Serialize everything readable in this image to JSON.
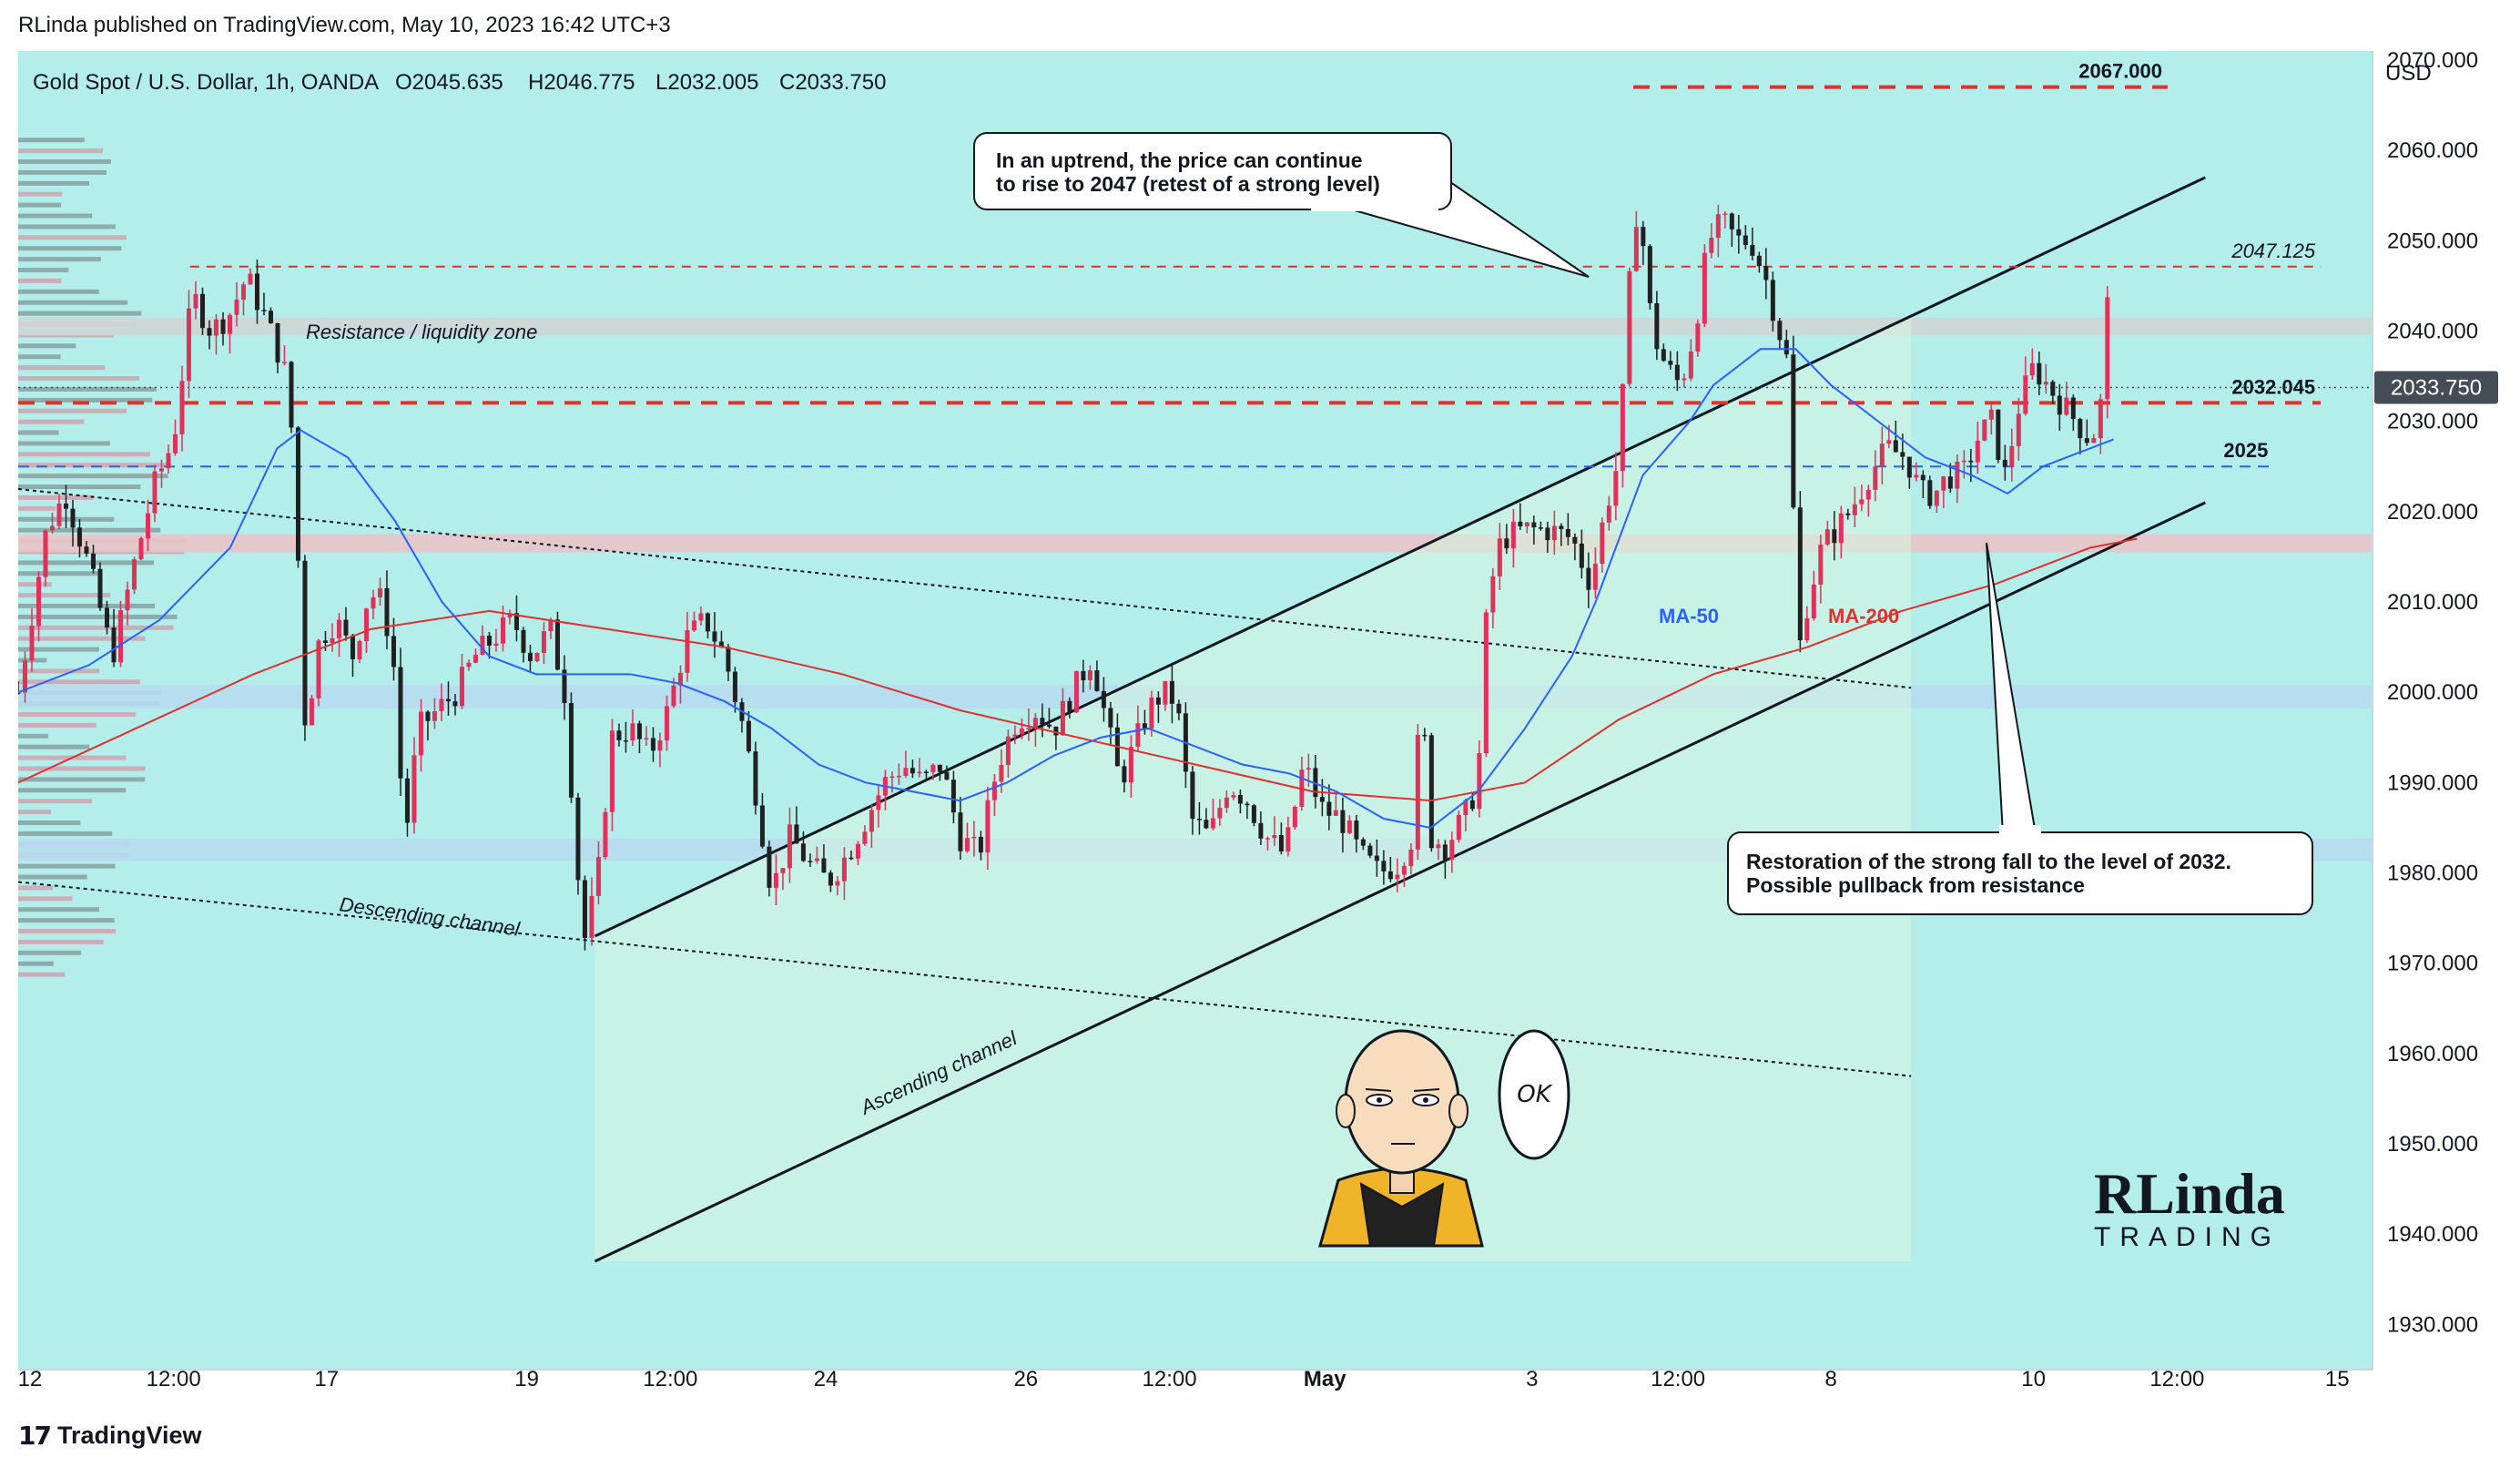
{
  "header": {
    "publisher_line": "RLinda published on TradingView.com, May 10, 2023 16:42 UTC+3"
  },
  "brand": {
    "footer_name": "TradingView",
    "watermark_top": "RLinda",
    "watermark_bottom": "TRADING"
  },
  "colors": {
    "up_candle": "#e0315a",
    "down_candle": "#202020",
    "ma50": "#2962ff",
    "ma200": "#e03030",
    "resistance_dash": "#e03030",
    "support_dash": "#2962ff",
    "background": "#b3eeea",
    "resistance_zone": "#d0d0d0",
    "support_zone": "#bde0f2"
  },
  "chart_data": {
    "type": "candlestick",
    "symbol_line": "Gold Spot / U.S. Dollar, 1h, OANDA",
    "ohlc": {
      "open": "O2045.635",
      "high": "H2046.775",
      "low": "L2032.005",
      "close": "C2033.750"
    },
    "currency": "USD",
    "ylim": [
      1925,
      2071
    ],
    "y_ticks": [
      {
        "label": "2070.000",
        "value": 2070
      },
      {
        "label": "2060.000",
        "value": 2060
      },
      {
        "label": "2050.000",
        "value": 2050
      },
      {
        "label": "2040.000",
        "value": 2040
      },
      {
        "label": "2030.000",
        "value": 2030
      },
      {
        "label": "2020.000",
        "value": 2020
      },
      {
        "label": "2010.000",
        "value": 2010
      },
      {
        "label": "2000.000",
        "value": 2000
      },
      {
        "label": "1990.000",
        "value": 1990
      },
      {
        "label": "1980.000",
        "value": 1980
      },
      {
        "label": "1970.000",
        "value": 1970
      },
      {
        "label": "1960.000",
        "value": 1960
      },
      {
        "label": "1950.000",
        "value": 1950
      },
      {
        "label": "1940.000",
        "value": 1940
      },
      {
        "label": "1930.000",
        "value": 1930
      }
    ],
    "x_ticks": [
      {
        "label": "12",
        "pos": 0.005,
        "bold": false
      },
      {
        "label": "12:00",
        "pos": 0.066,
        "bold": false
      },
      {
        "label": "17",
        "pos": 0.131,
        "bold": false
      },
      {
        "label": "19",
        "pos": 0.216,
        "bold": false
      },
      {
        "label": "12:00",
        "pos": 0.277,
        "bold": false
      },
      {
        "label": "24",
        "pos": 0.343,
        "bold": false
      },
      {
        "label": "26",
        "pos": 0.428,
        "bold": false
      },
      {
        "label": "12:00",
        "pos": 0.489,
        "bold": false
      },
      {
        "label": "May",
        "pos": 0.555,
        "bold": true
      },
      {
        "label": "3",
        "pos": 0.643,
        "bold": false
      },
      {
        "label": "12:00",
        "pos": 0.705,
        "bold": false
      },
      {
        "label": "8",
        "pos": 0.77,
        "bold": false
      },
      {
        "label": "10",
        "pos": 0.856,
        "bold": false
      },
      {
        "label": "12:00",
        "pos": 0.917,
        "bold": false
      },
      {
        "label": "15",
        "pos": 0.985,
        "bold": false
      }
    ],
    "last_price_label": "2033.750",
    "last_price": 2033.75,
    "levels": [
      {
        "label": "2067.000",
        "value": 2067,
        "style": "red-dash-thick",
        "x_from": 0.686,
        "x_to": 0.913
      },
      {
        "label": "2047.125",
        "value": 2047.125,
        "style": "red-dash-thin",
        "x_from": 0.073,
        "x_to": 0.978,
        "italic": true
      },
      {
        "label": "2032.045",
        "value": 2032.045,
        "style": "red-dash-thick",
        "x_from": 0.0,
        "x_to": 0.978
      },
      {
        "label": "2025",
        "value": 2025,
        "style": "blue-dash",
        "x_from": 0.0,
        "x_to": 0.958
      }
    ],
    "zones": [
      {
        "name": "resistance-zone",
        "y_top": 2041.5,
        "y_bottom": 2039.5
      },
      {
        "name": "pink-zone",
        "y_top": 2017.5,
        "y_bottom": 2015.5
      },
      {
        "name": "support-zone-2000",
        "y_top": 2000.8,
        "y_bottom": 1998.2
      },
      {
        "name": "support-zone-1983",
        "y_top": 1983.8,
        "y_bottom": 1981.3
      }
    ],
    "channels": {
      "descending_upper": [
        [
          0.0,
          2022.5
        ],
        [
          0.804,
          2000.5
        ]
      ],
      "descending_lower": [
        [
          0.0,
          1979
        ],
        [
          0.804,
          1957.5
        ]
      ],
      "ascending_lower": [
        [
          0.245,
          1937
        ],
        [
          0.929,
          2021
        ]
      ],
      "ascending_upper": [
        [
          0.245,
          1973
        ],
        [
          0.929,
          2057
        ]
      ]
    },
    "annotations": {
      "resistance_zone_label": "Resistance / liquidity zone",
      "descending_channel_label": "Descending channel",
      "ascending_channel_label": "Ascending channel",
      "ma50_label": "MA-50",
      "ma200_label": "MA-200",
      "callout_1_line1": "In an uptrend, the price can continue",
      "callout_1_line2": "to rise to 2047 (retest of a strong level)",
      "callout_2_line1": "Restoration of the strong fall to the level of 2032.",
      "callout_2_line2": "Possible pullback from resistance",
      "speech_bubble": "OK"
    },
    "price_path": [
      [
        0.0,
        2000
      ],
      [
        0.012,
        2018
      ],
      [
        0.02,
        2022
      ],
      [
        0.03,
        2014
      ],
      [
        0.04,
        2004
      ],
      [
        0.05,
        2015
      ],
      [
        0.058,
        2023
      ],
      [
        0.066,
        2028
      ],
      [
        0.074,
        2044
      ],
      [
        0.082,
        2040
      ],
      [
        0.09,
        2042
      ],
      [
        0.097,
        2046
      ],
      [
        0.104,
        2042
      ],
      [
        0.11,
        2038
      ],
      [
        0.115,
        2034
      ],
      [
        0.118,
        2020
      ],
      [
        0.122,
        1996
      ],
      [
        0.128,
        2006
      ],
      [
        0.135,
        2008
      ],
      [
        0.142,
        2004
      ],
      [
        0.149,
        2011
      ],
      [
        0.155,
        2010
      ],
      [
        0.16,
        2002
      ],
      [
        0.164,
        1983
      ],
      [
        0.17,
        1996
      ],
      [
        0.178,
        1998
      ],
      [
        0.186,
        2000
      ],
      [
        0.194,
        2004
      ],
      [
        0.202,
        2006
      ],
      [
        0.21,
        2008
      ],
      [
        0.218,
        2004
      ],
      [
        0.226,
        2007
      ],
      [
        0.232,
        2000
      ],
      [
        0.236,
        1986
      ],
      [
        0.24,
        1972
      ],
      [
        0.246,
        1979
      ],
      [
        0.252,
        1995
      ],
      [
        0.26,
        1996
      ],
      [
        0.268,
        1993
      ],
      [
        0.276,
        1998
      ],
      [
        0.284,
        2006
      ],
      [
        0.292,
        2008
      ],
      [
        0.3,
        2004
      ],
      [
        0.308,
        1996
      ],
      [
        0.314,
        1988
      ],
      [
        0.32,
        1978
      ],
      [
        0.328,
        1984
      ],
      [
        0.336,
        1981
      ],
      [
        0.344,
        1979
      ],
      [
        0.352,
        1982
      ],
      [
        0.36,
        1986
      ],
      [
        0.368,
        1990
      ],
      [
        0.376,
        1992
      ],
      [
        0.384,
        1990
      ],
      [
        0.392,
        1992
      ],
      [
        0.4,
        1984
      ],
      [
        0.408,
        1982
      ],
      [
        0.416,
        1992
      ],
      [
        0.424,
        1997
      ],
      [
        0.432,
        1998
      ],
      [
        0.44,
        1996
      ],
      [
        0.448,
        2000
      ],
      [
        0.456,
        2004
      ],
      [
        0.462,
        1997
      ],
      [
        0.468,
        1990
      ],
      [
        0.474,
        1994
      ],
      [
        0.48,
        1998
      ],
      [
        0.486,
        2000
      ],
      [
        0.492,
        1999
      ],
      [
        0.498,
        1986
      ],
      [
        0.506,
        1984
      ],
      [
        0.514,
        1990
      ],
      [
        0.522,
        1988
      ],
      [
        0.53,
        1984
      ],
      [
        0.538,
        1982
      ],
      [
        0.546,
        1992
      ],
      [
        0.554,
        1987
      ],
      [
        0.562,
        1986
      ],
      [
        0.57,
        1982
      ],
      [
        0.578,
        1980
      ],
      [
        0.586,
        1981
      ],
      [
        0.592,
        1984
      ],
      [
        0.596,
        2000
      ],
      [
        0.6,
        1984
      ],
      [
        0.606,
        1983
      ],
      [
        0.614,
        1986
      ],
      [
        0.62,
        1990
      ],
      [
        0.624,
        2010
      ],
      [
        0.63,
        2017
      ],
      [
        0.64,
        2018
      ],
      [
        0.65,
        2018
      ],
      [
        0.66,
        2017
      ],
      [
        0.668,
        2012
      ],
      [
        0.674,
        2020
      ],
      [
        0.68,
        2026
      ],
      [
        0.684,
        2044
      ],
      [
        0.688,
        2055
      ],
      [
        0.694,
        2040
      ],
      [
        0.7,
        2036
      ],
      [
        0.706,
        2034
      ],
      [
        0.712,
        2040
      ],
      [
        0.718,
        2050
      ],
      [
        0.724,
        2052
      ],
      [
        0.73,
        2050
      ],
      [
        0.736,
        2050
      ],
      [
        0.742,
        2046
      ],
      [
        0.748,
        2040
      ],
      [
        0.752,
        2036
      ],
      [
        0.756,
        2004
      ],
      [
        0.76,
        2010
      ],
      [
        0.766,
        2016
      ],
      [
        0.772,
        2018
      ],
      [
        0.778,
        2020
      ],
      [
        0.786,
        2024
      ],
      [
        0.794,
        2027
      ],
      [
        0.802,
        2026
      ],
      [
        0.808,
        2022
      ],
      [
        0.814,
        2022
      ],
      [
        0.82,
        2024
      ],
      [
        0.826,
        2024
      ],
      [
        0.832,
        2028
      ],
      [
        0.838,
        2030
      ],
      [
        0.844,
        2024
      ],
      [
        0.85,
        2032
      ],
      [
        0.856,
        2036
      ],
      [
        0.862,
        2034
      ],
      [
        0.868,
        2032
      ],
      [
        0.874,
        2030
      ],
      [
        0.88,
        2028
      ],
      [
        0.884,
        2030
      ],
      [
        0.888,
        2045
      ],
      [
        0.89,
        2034
      ]
    ],
    "ma50_path": [
      [
        0.0,
        2000
      ],
      [
        0.03,
        2003
      ],
      [
        0.06,
        2008
      ],
      [
        0.09,
        2016
      ],
      [
        0.11,
        2027
      ],
      [
        0.12,
        2029
      ],
      [
        0.14,
        2026
      ],
      [
        0.16,
        2019
      ],
      [
        0.18,
        2010
      ],
      [
        0.2,
        2004
      ],
      [
        0.22,
        2002
      ],
      [
        0.24,
        2002
      ],
      [
        0.26,
        2002
      ],
      [
        0.28,
        2001
      ],
      [
        0.3,
        1999
      ],
      [
        0.32,
        1996
      ],
      [
        0.34,
        1992
      ],
      [
        0.36,
        1990
      ],
      [
        0.38,
        1989
      ],
      [
        0.4,
        1988
      ],
      [
        0.42,
        1990
      ],
      [
        0.44,
        1993
      ],
      [
        0.46,
        1995
      ],
      [
        0.48,
        1996
      ],
      [
        0.5,
        1994
      ],
      [
        0.52,
        1992
      ],
      [
        0.54,
        1991
      ],
      [
        0.56,
        1989
      ],
      [
        0.58,
        1986
      ],
      [
        0.6,
        1985
      ],
      [
        0.62,
        1989
      ],
      [
        0.64,
        1996
      ],
      [
        0.66,
        2004
      ],
      [
        0.67,
        2010
      ],
      [
        0.69,
        2024
      ],
      [
        0.71,
        2030
      ],
      [
        0.72,
        2034
      ],
      [
        0.74,
        2038
      ],
      [
        0.755,
        2038
      ],
      [
        0.77,
        2034
      ],
      [
        0.79,
        2030
      ],
      [
        0.81,
        2026
      ],
      [
        0.83,
        2024
      ],
      [
        0.845,
        2022
      ],
      [
        0.86,
        2025
      ],
      [
        0.88,
        2027
      ],
      [
        0.89,
        2028
      ]
    ],
    "ma200_path": [
      [
        0.0,
        1990
      ],
      [
        0.05,
        1996
      ],
      [
        0.1,
        2002
      ],
      [
        0.15,
        2007
      ],
      [
        0.2,
        2009
      ],
      [
        0.25,
        2007
      ],
      [
        0.3,
        2005
      ],
      [
        0.35,
        2002
      ],
      [
        0.4,
        1998
      ],
      [
        0.45,
        1995
      ],
      [
        0.5,
        1992
      ],
      [
        0.55,
        1989
      ],
      [
        0.6,
        1988
      ],
      [
        0.64,
        1990
      ],
      [
        0.68,
        1997
      ],
      [
        0.72,
        2002
      ],
      [
        0.76,
        2005
      ],
      [
        0.8,
        2009
      ],
      [
        0.84,
        2012
      ],
      [
        0.88,
        2016
      ],
      [
        0.9,
        2017
      ]
    ]
  }
}
